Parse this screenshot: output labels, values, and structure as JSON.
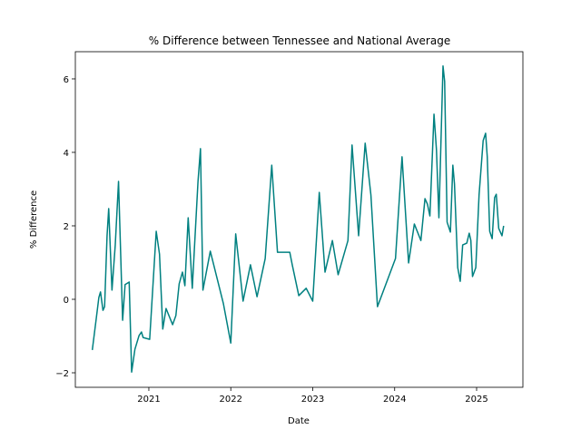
{
  "chart_data": {
    "type": "line",
    "title": "% Difference between Tennessee and National Average",
    "x_label": "Date",
    "y_label": "% Difference",
    "x": [
      2020.31,
      2020.36,
      2020.39,
      2020.41,
      2020.44,
      2020.46,
      2020.49,
      2020.51,
      2020.55,
      2020.59,
      2020.63,
      2020.68,
      2020.71,
      2020.76,
      2020.79,
      2020.83,
      2020.88,
      2020.91,
      2020.93,
      2021.01,
      2021.09,
      2021.13,
      2021.17,
      2021.21,
      2021.29,
      2021.33,
      2021.37,
      2021.41,
      2021.44,
      2021.48,
      2021.53,
      2021.6,
      2021.63,
      2021.66,
      2021.75,
      2021.91,
      2022.0,
      2022.06,
      2022.15,
      2022.24,
      2022.32,
      2022.42,
      2022.5,
      2022.57,
      2022.72,
      2022.75,
      2022.83,
      2022.92,
      2023.0,
      2023.08,
      2023.15,
      2023.24,
      2023.31,
      2023.43,
      2023.48,
      2023.56,
      2023.64,
      2023.71,
      2023.79,
      2024.01,
      2024.09,
      2024.17,
      2024.24,
      2024.32,
      2024.37,
      2024.4,
      2024.43,
      2024.48,
      2024.51,
      2024.54,
      2024.59,
      2024.61,
      2024.64,
      2024.68,
      2024.71,
      2024.73,
      2024.77,
      2024.8,
      2024.83,
      2024.88,
      2024.91,
      2024.93,
      2024.95,
      2024.99,
      2025.03,
      2025.08,
      2025.11,
      2025.13,
      2025.16,
      2025.19,
      2025.22,
      2025.24,
      2025.27,
      2025.31,
      2025.33
    ],
    "series": [
      {
        "name": "% Difference",
        "color": "#008080",
        "values": [
          -1.38,
          -0.49,
          0.05,
          0.2,
          -0.3,
          -0.2,
          1.73,
          2.47,
          0.25,
          1.48,
          3.21,
          -0.57,
          0.4,
          0.47,
          -1.98,
          -1.36,
          -0.99,
          -0.89,
          -1.04,
          -1.09,
          1.85,
          1.23,
          -0.81,
          -0.25,
          -0.69,
          -0.44,
          0.42,
          0.74,
          0.37,
          2.22,
          0.3,
          3.21,
          4.1,
          0.25,
          1.31,
          -0.12,
          -1.19,
          1.78,
          -0.05,
          0.94,
          0.07,
          1.11,
          3.65,
          1.28,
          1.28,
          0.94,
          0.1,
          0.3,
          -0.05,
          2.91,
          0.74,
          1.6,
          0.67,
          1.6,
          4.2,
          1.73,
          4.25,
          2.84,
          -0.2,
          1.11,
          3.88,
          0.99,
          2.05,
          1.6,
          2.74,
          2.59,
          2.27,
          5.04,
          4.07,
          2.22,
          6.35,
          5.93,
          2.1,
          1.83,
          3.65,
          3.14,
          0.86,
          0.49,
          1.48,
          1.53,
          1.8,
          1.6,
          0.62,
          0.86,
          2.84,
          4.32,
          4.52,
          3.88,
          1.85,
          1.65,
          2.77,
          2.86,
          1.93,
          1.73,
          2.0
        ]
      }
    ],
    "xlim": [
      2020.103,
      2025.565
    ],
    "xticks": [
      2021,
      2022,
      2023,
      2024,
      2025
    ],
    "ylim": [
      -2.395,
      6.74
    ],
    "yticks": [
      {
        "value": -2,
        "label": "−2"
      },
      0,
      2,
      4,
      6
    ]
  }
}
